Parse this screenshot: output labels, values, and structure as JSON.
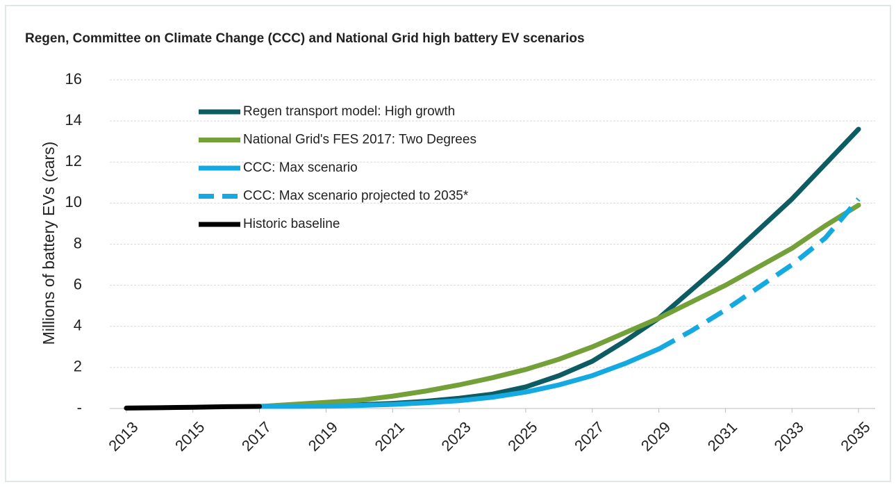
{
  "chart_data": {
    "type": "line",
    "title": "Regen, Committee on Climate Change (CCC) and National Grid high battery EV scenarios",
    "y_label": "Millions of battery EVs (cars)",
    "x": [
      2013,
      2014,
      2015,
      2016,
      2017,
      2018,
      2019,
      2020,
      2021,
      2022,
      2023,
      2024,
      2025,
      2026,
      2027,
      2028,
      2029,
      2030,
      2031,
      2032,
      2033,
      2034,
      2035
    ],
    "series": [
      {
        "name": "Regen transport model: High growth",
        "color": "#0d5c63",
        "dashed": false,
        "values": [
          null,
          null,
          null,
          null,
          0.1,
          0.12,
          0.15,
          0.18,
          0.25,
          0.35,
          0.5,
          0.7,
          1.05,
          1.6,
          2.3,
          3.3,
          4.4,
          5.8,
          7.2,
          8.7,
          10.2,
          11.9,
          13.6
        ]
      },
      {
        "name": "National Grid's FES 2017: Two Degrees",
        "color": "#74a03a",
        "dashed": false,
        "values": [
          null,
          null,
          null,
          null,
          0.1,
          0.2,
          0.3,
          0.4,
          0.6,
          0.85,
          1.15,
          1.5,
          1.9,
          2.4,
          3.0,
          3.7,
          4.4,
          5.2,
          6.0,
          6.9,
          7.8,
          8.9,
          9.9
        ]
      },
      {
        "name": "CCC: Max scenario",
        "color": "#15a9e1",
        "dashed": false,
        "values": [
          null,
          null,
          null,
          null,
          0.1,
          0.1,
          0.12,
          0.15,
          0.2,
          0.28,
          0.38,
          0.55,
          0.8,
          1.15,
          1.6,
          2.2,
          2.9,
          null,
          null,
          null,
          null,
          null,
          null
        ]
      },
      {
        "name": "CCC: Max scenario projected to 2035*",
        "color": "#15a9e1",
        "dashed": true,
        "values": [
          null,
          null,
          null,
          null,
          null,
          null,
          null,
          null,
          null,
          null,
          null,
          null,
          null,
          null,
          null,
          null,
          2.9,
          3.8,
          4.8,
          5.9,
          7.0,
          8.3,
          10.2
        ]
      },
      {
        "name": "Historic baseline",
        "color": "#000000",
        "dashed": false,
        "values": [
          0.02,
          0.04,
          0.06,
          0.09,
          0.1,
          null,
          null,
          null,
          null,
          null,
          null,
          null,
          null,
          null,
          null,
          null,
          null,
          null,
          null,
          null,
          null,
          null,
          null
        ]
      }
    ],
    "xlim": [
      2012.5,
      2035.5
    ],
    "xticks": [
      2013,
      2015,
      2017,
      2019,
      2021,
      2023,
      2025,
      2027,
      2029,
      2031,
      2033,
      2035
    ],
    "ylim": [
      0,
      16
    ],
    "yticks": [
      {
        "value": 0,
        "label": "-"
      },
      2,
      4,
      6,
      8,
      10,
      12,
      14,
      16
    ],
    "grid": true
  }
}
